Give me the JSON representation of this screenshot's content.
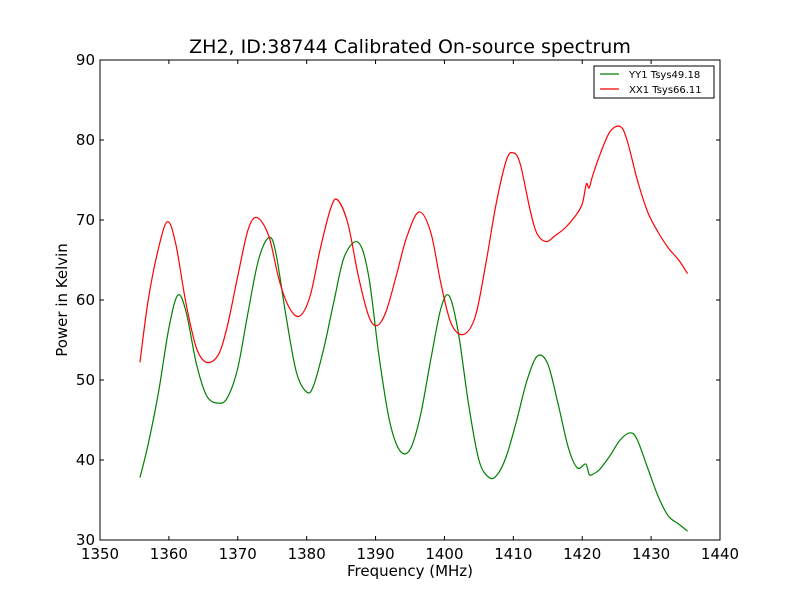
{
  "chart_data": {
    "type": "line",
    "title": "ZH2, ID:38744 Calibrated On-source spectrum",
    "xlabel": "Frequency (MHz)",
    "ylabel": "Power in Kelvin",
    "xlim": [
      1350,
      1440
    ],
    "ylim": [
      30,
      90
    ],
    "xticks": [
      "1350",
      "1360",
      "1370",
      "1380",
      "1390",
      "1400",
      "1410",
      "1420",
      "1430",
      "1440"
    ],
    "yticks": [
      "30",
      "40",
      "50",
      "60",
      "70",
      "80",
      "90"
    ],
    "grid": false,
    "legend_position": "top-right",
    "series": [
      {
        "name": "YY1 Tsys49.18",
        "color": "#008000",
        "x": [
          1355.8,
          1357,
          1358.5,
          1360,
          1361.3,
          1362.5,
          1364,
          1365.5,
          1367.2,
          1368.5,
          1370,
          1371.5,
          1373,
          1374.5,
          1375.5,
          1377,
          1378.5,
          1380,
          1381,
          1382.5,
          1384,
          1385.5,
          1387.5,
          1389,
          1390.5,
          1392,
          1393.5,
          1395,
          1396.5,
          1398,
          1399.5,
          1400.7,
          1402,
          1403.5,
          1405,
          1406.5,
          1407.7,
          1409,
          1410.5,
          1412,
          1413.5,
          1415,
          1416.5,
          1418,
          1419.3,
          1420.5,
          1421,
          1421.5,
          1422.5,
          1424,
          1425.5,
          1427,
          1428,
          1429.5,
          1431,
          1432.5,
          1434,
          1435.3
        ],
        "y": [
          37.8,
          42,
          48.5,
          56.5,
          60.6,
          58.5,
          52,
          48,
          47.1,
          47.8,
          51.5,
          58.5,
          65,
          67.8,
          66,
          58,
          51,
          48.5,
          49.3,
          54,
          60,
          65.5,
          67.2,
          63,
          53,
          45,
          41.2,
          41.3,
          45.5,
          52.5,
          59,
          60.5,
          56,
          47,
          40,
          37.8,
          38.2,
          40.5,
          45,
          50,
          53,
          52,
          47,
          41.5,
          39,
          39.5,
          38.2,
          38.2,
          38.8,
          40.5,
          42.5,
          43.4,
          42.5,
          39,
          35.5,
          33,
          32,
          31.1
        ]
      },
      {
        "name": "XX1 Tsys66.11",
        "color": "#ff0000",
        "x": [
          1355.8,
          1357,
          1358.5,
          1359.8,
          1361,
          1362.5,
          1364,
          1365.5,
          1367.2,
          1368.5,
          1370,
          1371.5,
          1372.8,
          1374.5,
          1376,
          1377.5,
          1379,
          1380.5,
          1382,
          1383.5,
          1384.5,
          1386,
          1387.5,
          1389,
          1390.2,
          1391.5,
          1393,
          1394.5,
          1396.3,
          1398,
          1399.5,
          1401,
          1402.8,
          1404.5,
          1406,
          1407.5,
          1409,
          1410,
          1411,
          1412.5,
          1413.5,
          1414.8,
          1416,
          1417.5,
          1419,
          1420,
          1420.6,
          1421,
          1421.5,
          1422.5,
          1424,
          1425.5,
          1426.5,
          1428,
          1429.5,
          1431,
          1432.5,
          1434,
          1435.3
        ],
        "y": [
          52.2,
          60,
          66.5,
          69.8,
          67,
          59.5,
          54,
          52.2,
          53.2,
          56.8,
          63,
          68.8,
          70.3,
          68,
          62.5,
          59,
          58,
          60.5,
          66.5,
          71.5,
          72.5,
          69.5,
          63,
          58,
          56.8,
          58.5,
          63,
          67.8,
          71,
          68.5,
          62,
          57,
          55.7,
          58,
          64.5,
          72,
          77.5,
          78.4,
          77,
          71,
          68.2,
          67.3,
          68,
          69,
          70.5,
          72,
          74.5,
          74,
          75.5,
          78,
          81,
          81.7,
          80,
          75,
          71,
          68.5,
          66.5,
          65,
          63.3
        ]
      }
    ]
  }
}
